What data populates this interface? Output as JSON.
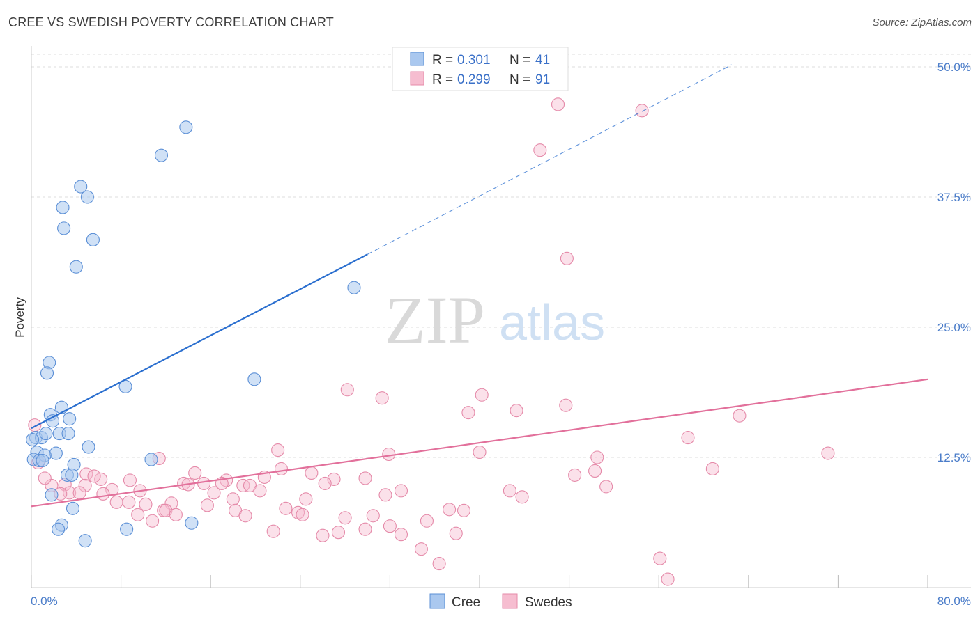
{
  "title": "CREE VS SWEDISH POVERTY CORRELATION CHART",
  "source": "Source: ZipAtlas.com",
  "watermark": {
    "zip": "ZIP",
    "atlas": "atlas"
  },
  "colors": {
    "cree_fill": "#aac8ef",
    "cree_stroke": "#5b8fd6",
    "cree_line": "#2b6fcf",
    "swedes_fill": "#f6bdd0",
    "swedes_stroke": "#e58aa9",
    "swedes_line": "#e2709b",
    "grid": "#dddddd",
    "axis_text": "#4a7cc9"
  },
  "legend": {
    "rows": [
      {
        "r_label": "R =",
        "r_value": "0.301",
        "n_label": "N =",
        "n_value": "41"
      },
      {
        "r_label": "R =",
        "r_value": "0.299",
        "n_label": "N =",
        "n_value": "91"
      }
    ]
  },
  "chart_data": {
    "type": "scatter",
    "title": "CREE VS SWEDISH POVERTY CORRELATION CHART",
    "xlabel": "",
    "ylabel": "Poverty",
    "xlim": [
      0,
      80
    ],
    "ylim": [
      0,
      50
    ],
    "x_tick_labels": [
      "0.0%",
      "80.0%"
    ],
    "y_ticks": [
      12.5,
      25.0,
      37.5,
      50.0
    ],
    "y_tick_labels": [
      "12.5%",
      "25.0%",
      "37.5%",
      "50.0%"
    ],
    "grid": "horizontal dashed",
    "legend_position": "top-center",
    "series": [
      {
        "name": "Cree",
        "points": [
          [
            13.8,
            44.2
          ],
          [
            11.6,
            41.5
          ],
          [
            4.4,
            38.5
          ],
          [
            5.0,
            37.5
          ],
          [
            2.8,
            36.5
          ],
          [
            2.9,
            34.5
          ],
          [
            5.5,
            33.4
          ],
          [
            4.0,
            30.8
          ],
          [
            28.8,
            28.8
          ],
          [
            1.6,
            21.6
          ],
          [
            1.4,
            20.6
          ],
          [
            19.9,
            20.0
          ],
          [
            8.4,
            19.3
          ],
          [
            2.7,
            17.3
          ],
          [
            1.7,
            16.6
          ],
          [
            3.4,
            16.2
          ],
          [
            1.9,
            16.0
          ],
          [
            0.4,
            14.4
          ],
          [
            0.9,
            14.4
          ],
          [
            1.3,
            14.8
          ],
          [
            2.5,
            14.8
          ],
          [
            3.3,
            14.8
          ],
          [
            5.1,
            13.5
          ],
          [
            0.5,
            13.0
          ],
          [
            2.2,
            12.9
          ],
          [
            1.2,
            12.7
          ],
          [
            0.2,
            12.3
          ],
          [
            0.7,
            12.2
          ],
          [
            1.0,
            12.2
          ],
          [
            10.7,
            12.3
          ],
          [
            3.8,
            11.8
          ],
          [
            3.2,
            10.8
          ],
          [
            3.6,
            10.8
          ],
          [
            1.8,
            8.9
          ],
          [
            3.7,
            7.6
          ],
          [
            2.7,
            6.0
          ],
          [
            2.4,
            5.6
          ],
          [
            8.5,
            5.6
          ],
          [
            14.3,
            6.2
          ],
          [
            4.8,
            4.5
          ],
          [
            0.1,
            14.2
          ]
        ],
        "trend": {
          "x": [
            0.0,
            30.0
          ],
          "y": [
            15.3,
            32.0
          ],
          "extended_x": [
            30.0,
            62.5
          ],
          "extended_y": [
            32.0,
            50.2
          ]
        }
      },
      {
        "name": "Swedes",
        "points": [
          [
            47.0,
            46.4
          ],
          [
            54.5,
            45.8
          ],
          [
            45.4,
            42.0
          ],
          [
            47.8,
            31.6
          ],
          [
            28.2,
            19.0
          ],
          [
            31.3,
            18.2
          ],
          [
            40.2,
            18.5
          ],
          [
            47.7,
            17.5
          ],
          [
            43.3,
            17.0
          ],
          [
            39.0,
            16.8
          ],
          [
            63.2,
            16.5
          ],
          [
            58.6,
            14.4
          ],
          [
            22.0,
            13.2
          ],
          [
            40.0,
            13.0
          ],
          [
            31.9,
            12.8
          ],
          [
            71.1,
            12.9
          ],
          [
            50.5,
            12.5
          ],
          [
            11.4,
            12.4
          ],
          [
            22.3,
            11.4
          ],
          [
            60.8,
            11.4
          ],
          [
            50.3,
            11.2
          ],
          [
            14.6,
            11.0
          ],
          [
            25.0,
            11.0
          ],
          [
            20.8,
            10.6
          ],
          [
            4.9,
            10.9
          ],
          [
            6.2,
            10.4
          ],
          [
            27.0,
            10.4
          ],
          [
            17.4,
            10.3
          ],
          [
            13.6,
            10.0
          ],
          [
            15.4,
            10.0
          ],
          [
            29.8,
            10.5
          ],
          [
            48.5,
            10.8
          ],
          [
            51.3,
            9.7
          ],
          [
            3.0,
            9.9
          ],
          [
            4.8,
            9.8
          ],
          [
            18.9,
            9.8
          ],
          [
            19.5,
            9.8
          ],
          [
            26.2,
            10.0
          ],
          [
            1.8,
            9.8
          ],
          [
            7.2,
            9.4
          ],
          [
            9.7,
            9.3
          ],
          [
            20.4,
            9.3
          ],
          [
            3.4,
            9.1
          ],
          [
            4.3,
            9.1
          ],
          [
            16.3,
            9.1
          ],
          [
            33.0,
            9.3
          ],
          [
            42.7,
            9.3
          ],
          [
            2.6,
            9.0
          ],
          [
            18.0,
            8.5
          ],
          [
            43.8,
            8.7
          ],
          [
            7.6,
            8.2
          ],
          [
            10.2,
            8.0
          ],
          [
            12.5,
            8.1
          ],
          [
            15.7,
            7.9
          ],
          [
            8.7,
            8.2
          ],
          [
            9.5,
            7.0
          ],
          [
            22.7,
            7.6
          ],
          [
            11.8,
            7.4
          ],
          [
            12.0,
            7.4
          ],
          [
            18.2,
            7.4
          ],
          [
            23.8,
            7.2
          ],
          [
            37.3,
            7.5
          ],
          [
            12.9,
            7.0
          ],
          [
            19.1,
            6.9
          ],
          [
            28.0,
            6.7
          ],
          [
            24.2,
            7.0
          ],
          [
            30.5,
            6.9
          ],
          [
            35.3,
            6.4
          ],
          [
            10.8,
            6.4
          ],
          [
            32.0,
            5.9
          ],
          [
            27.4,
            5.3
          ],
          [
            29.8,
            5.6
          ],
          [
            21.6,
            5.4
          ],
          [
            37.9,
            5.2
          ],
          [
            26.0,
            5.0
          ],
          [
            33.0,
            5.1
          ],
          [
            34.8,
            3.7
          ],
          [
            36.4,
            2.3
          ],
          [
            56.1,
            2.8
          ],
          [
            56.8,
            0.8
          ],
          [
            0.3,
            15.6
          ],
          [
            0.6,
            12.0
          ],
          [
            1.2,
            10.5
          ],
          [
            5.6,
            10.7
          ],
          [
            8.8,
            10.3
          ],
          [
            14.0,
            9.9
          ],
          [
            17.0,
            10.0
          ],
          [
            24.5,
            8.5
          ],
          [
            31.6,
            8.9
          ],
          [
            6.4,
            9.0
          ],
          [
            38.6,
            7.4
          ]
        ],
        "trend": {
          "x": [
            0.0,
            80.0
          ],
          "y": [
            7.8,
            20.0
          ]
        }
      }
    ]
  },
  "bottom_legend": [
    {
      "label": "Cree"
    },
    {
      "label": "Swedes"
    }
  ]
}
